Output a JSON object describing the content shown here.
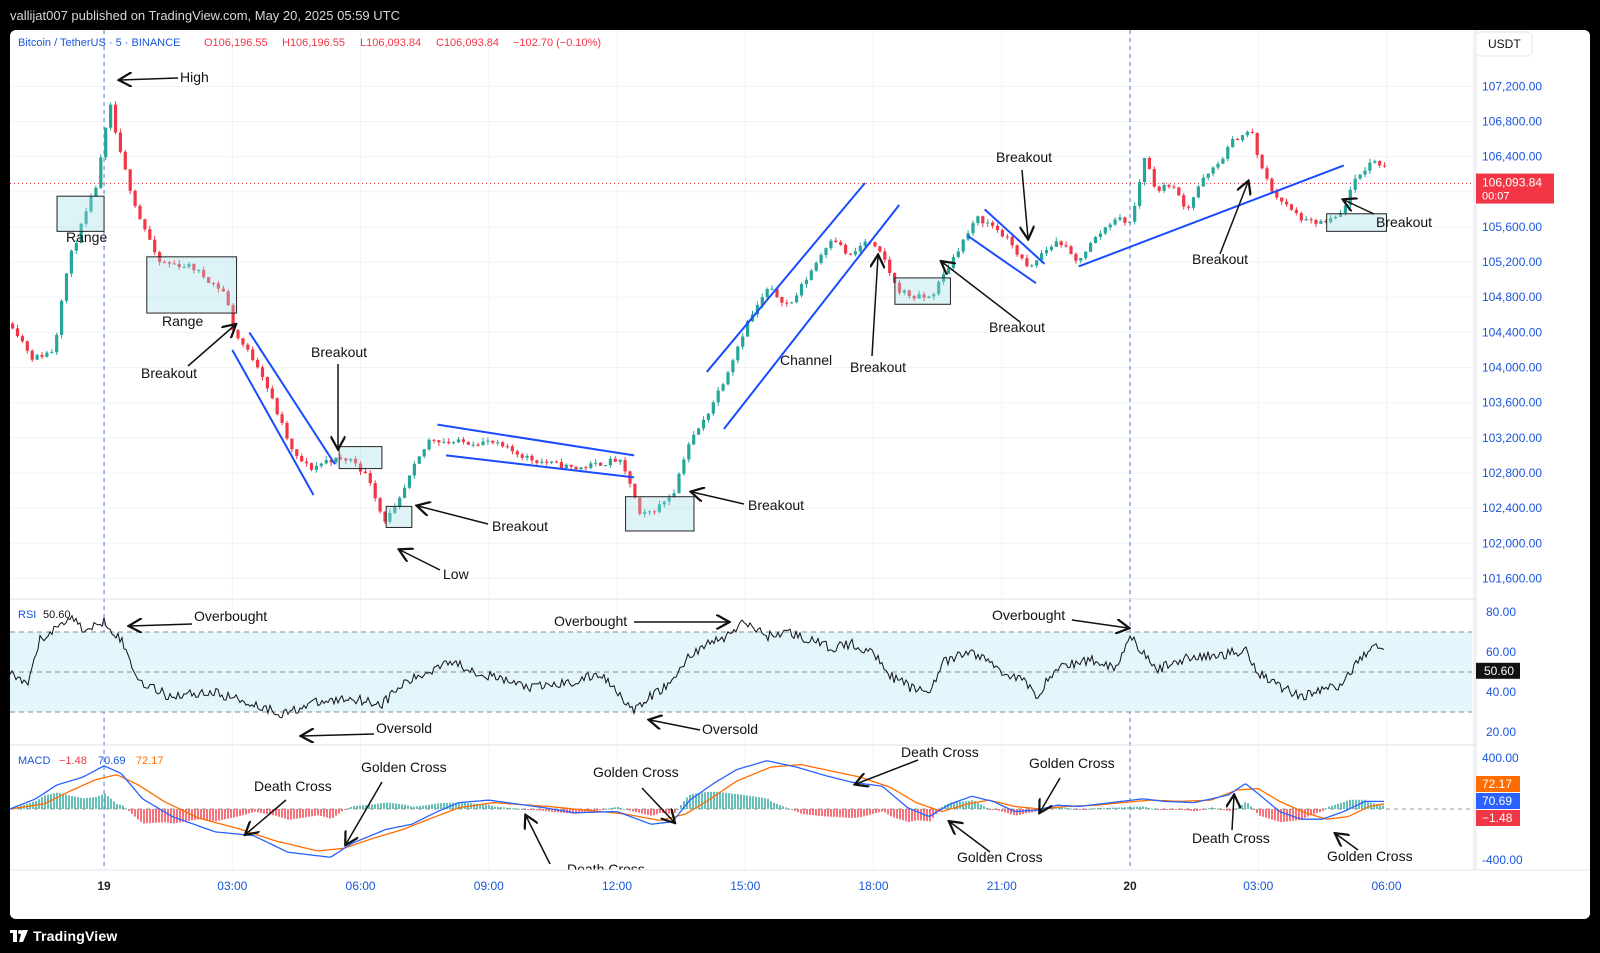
{
  "header": {
    "published": "vallijat007 published on TradingView.com, May 20, 2025 05:59 UTC"
  },
  "footer": {
    "brand": "TradingView"
  },
  "legend": {
    "symbol": "Bitcoin / TetherUS · 5 · BINANCE",
    "open": "O106,196.55",
    "high": "H106,196.55",
    "low": "L106,093.84",
    "close": "C106,093.84",
    "change": "−102.70 (−0.10%)",
    "currency": "USDT"
  },
  "price_label": {
    "value": "106,093.84",
    "countdown": "00:07",
    "color": "#f23645"
  },
  "colors": {
    "up": "#26a69a",
    "down": "#f23645",
    "trend": "#1a4cff",
    "rsi_band": "#e3f6fb",
    "macd": "#2962ff",
    "signal": "#ff6d00"
  },
  "chart_data": [
    {
      "type": "candlestick",
      "symbol": "Bitcoin / TetherUS",
      "interval": "5",
      "ylim": [
        101400,
        107500
      ],
      "y_ticks": [
        "107,200.00",
        "106,800.00",
        "106,400.00",
        "106,000.00",
        "105,600.00",
        "105,200.00",
        "104,800.00",
        "104,400.00",
        "104,000.00",
        "103,600.00",
        "103,200.00",
        "102,800.00",
        "102,400.00",
        "102,000.00",
        "101,600.00"
      ],
      "x_ticks": [
        "19",
        "03:00",
        "06:00",
        "09:00",
        "12:00",
        "15:00",
        "18:00",
        "21:00",
        "20",
        "03:00",
        "06:00"
      ],
      "x_tick_hours": [
        0,
        3,
        6,
        9,
        12,
        15,
        18,
        21,
        24,
        27,
        30
      ],
      "x_range_hours": [
        -2.2,
        32.0
      ],
      "last_price": 106093.84,
      "path": [
        [
          -2.2,
          104500
        ],
        [
          -1.7,
          104100
        ],
        [
          -1.2,
          104200
        ],
        [
          -1.0,
          104900
        ],
        [
          -0.8,
          105300
        ],
        [
          -0.5,
          105700
        ],
        [
          -0.2,
          106100
        ],
        [
          0.0,
          106700
        ],
        [
          0.1,
          107000
        ],
        [
          0.3,
          106500
        ],
        [
          0.6,
          106000
        ],
        [
          0.8,
          105700
        ],
        [
          1.0,
          105500
        ],
        [
          1.2,
          105200
        ],
        [
          2.0,
          105150
        ],
        [
          2.8,
          104850
        ],
        [
          3.0,
          104400
        ],
        [
          3.6,
          104000
        ],
        [
          4.0,
          103500
        ],
        [
          4.4,
          103000
        ],
        [
          4.8,
          102850
        ],
        [
          5.2,
          102950
        ],
        [
          5.8,
          102950
        ],
        [
          6.2,
          102700
        ],
        [
          6.5,
          102250
        ],
        [
          6.8,
          102400
        ],
        [
          7.2,
          102850
        ],
        [
          7.6,
          103200
        ],
        [
          8.0,
          103150
        ],
        [
          9.0,
          103150
        ],
        [
          10.0,
          102950
        ],
        [
          11.0,
          102850
        ],
        [
          12.0,
          102950
        ],
        [
          12.3,
          102650
        ],
        [
          12.5,
          102300
        ],
        [
          12.9,
          102400
        ],
        [
          13.3,
          102600
        ],
        [
          13.6,
          103100
        ],
        [
          14.0,
          103400
        ],
        [
          14.5,
          103900
        ],
        [
          15.0,
          104500
        ],
        [
          15.5,
          104900
        ],
        [
          16.0,
          104700
        ],
        [
          16.5,
          105100
        ],
        [
          17.0,
          105500
        ],
        [
          17.4,
          105250
        ],
        [
          17.8,
          105450
        ],
        [
          18.2,
          105250
        ],
        [
          18.5,
          104900
        ],
        [
          18.9,
          104800
        ],
        [
          19.3,
          104800
        ],
        [
          19.6,
          105050
        ],
        [
          20.0,
          105400
        ],
        [
          20.4,
          105700
        ],
        [
          20.8,
          105600
        ],
        [
          21.2,
          105400
        ],
        [
          21.6,
          105100
        ],
        [
          21.9,
          105300
        ],
        [
          22.3,
          105450
        ],
        [
          22.7,
          105200
        ],
        [
          23.2,
          105500
        ],
        [
          23.6,
          105700
        ],
        [
          24.0,
          105650
        ],
        [
          24.3,
          106400
        ],
        [
          24.6,
          106000
        ],
        [
          24.9,
          106100
        ],
        [
          25.3,
          105800
        ],
        [
          25.6,
          106100
        ],
        [
          26.0,
          106300
        ],
        [
          26.4,
          106600
        ],
        [
          26.8,
          106700
        ],
        [
          27.0,
          106300
        ],
        [
          27.3,
          106000
        ],
        [
          27.7,
          105800
        ],
        [
          28.1,
          105650
        ],
        [
          28.6,
          105650
        ],
        [
          28.9,
          105750
        ],
        [
          29.2,
          106100
        ],
        [
          29.6,
          106350
        ],
        [
          30.0,
          106300
        ],
        [
          30.4,
          106100
        ]
      ]
    },
    {
      "type": "line",
      "name": "RSI",
      "value_label": "50.60",
      "ylim": [
        15,
        85
      ],
      "y_ticks": [
        "80.00",
        "60.00",
        "40.00",
        "20.00"
      ],
      "bands": [
        70,
        50,
        30
      ],
      "path": [
        [
          -2.2,
          50
        ],
        [
          -1.8,
          42
        ],
        [
          -1.5,
          66
        ],
        [
          -1.1,
          72
        ],
        [
          -0.8,
          78
        ],
        [
          -0.4,
          70
        ],
        [
          0.0,
          76
        ],
        [
          0.4,
          66
        ],
        [
          0.8,
          46
        ],
        [
          1.5,
          38
        ],
        [
          2.5,
          40
        ],
        [
          3.2,
          36
        ],
        [
          4.2,
          29
        ],
        [
          4.8,
          34
        ],
        [
          5.8,
          37
        ],
        [
          6.5,
          34
        ],
        [
          7.0,
          44
        ],
        [
          7.6,
          50
        ],
        [
          8.0,
          56
        ],
        [
          9.0,
          48
        ],
        [
          10.0,
          42
        ],
        [
          11.0,
          45
        ],
        [
          11.6,
          49
        ],
        [
          12.0,
          41
        ],
        [
          12.4,
          30
        ],
        [
          12.8,
          38
        ],
        [
          13.3,
          45
        ],
        [
          13.6,
          56
        ],
        [
          14.0,
          63
        ],
        [
          14.5,
          67
        ],
        [
          15.0,
          75
        ],
        [
          15.5,
          68
        ],
        [
          16.0,
          70
        ],
        [
          16.5,
          66
        ],
        [
          17.0,
          62
        ],
        [
          17.5,
          64
        ],
        [
          18.1,
          58
        ],
        [
          18.4,
          48
        ],
        [
          18.9,
          42
        ],
        [
          19.3,
          40
        ],
        [
          19.6,
          54
        ],
        [
          20.2,
          60
        ],
        [
          20.6,
          57
        ],
        [
          21.0,
          50
        ],
        [
          21.5,
          46
        ],
        [
          21.8,
          38
        ],
        [
          22.3,
          52
        ],
        [
          22.8,
          55
        ],
        [
          23.2,
          56
        ],
        [
          23.7,
          52
        ],
        [
          24.0,
          70
        ],
        [
          24.2,
          62
        ],
        [
          24.6,
          51
        ],
        [
          25.3,
          57
        ],
        [
          26.0,
          58
        ],
        [
          26.7,
          61
        ],
        [
          27.0,
          50
        ],
        [
          27.5,
          43
        ],
        [
          28.0,
          38
        ],
        [
          28.5,
          41
        ],
        [
          29.0,
          44
        ],
        [
          29.4,
          58
        ],
        [
          29.8,
          63
        ],
        [
          30.2,
          56
        ],
        [
          30.4,
          50.6
        ]
      ]
    },
    {
      "type": "line",
      "name": "MACD",
      "value_labels": {
        "macd": "−1.48",
        "signal": "70.69",
        "hist": "72.17"
      },
      "axis_labels": [
        "72.17",
        "70.69",
        "−1.48"
      ],
      "ylim": [
        -480,
        480
      ],
      "y_ticks": [
        "400.00",
        "-400.00"
      ],
      "macd_path": [
        [
          -2.2,
          0
        ],
        [
          -1.6,
          80
        ],
        [
          -1.1,
          190
        ],
        [
          -0.5,
          250
        ],
        [
          0.0,
          340
        ],
        [
          0.4,
          280
        ],
        [
          0.9,
          80
        ],
        [
          1.6,
          -60
        ],
        [
          2.6,
          -180
        ],
        [
          3.5,
          -210
        ],
        [
          4.3,
          -340
        ],
        [
          5.3,
          -380
        ],
        [
          5.8,
          -270
        ],
        [
          6.6,
          -160
        ],
        [
          7.2,
          -120
        ],
        [
          7.8,
          -20
        ],
        [
          8.3,
          50
        ],
        [
          9.0,
          70
        ],
        [
          10.3,
          10
        ],
        [
          11.0,
          -30
        ],
        [
          12.0,
          -20
        ],
        [
          12.8,
          -120
        ],
        [
          13.3,
          -100
        ],
        [
          13.7,
          70
        ],
        [
          14.3,
          210
        ],
        [
          14.8,
          310
        ],
        [
          15.5,
          380
        ],
        [
          16.2,
          330
        ],
        [
          16.8,
          270
        ],
        [
          17.5,
          210
        ],
        [
          18.2,
          180
        ],
        [
          18.8,
          10
        ],
        [
          19.3,
          -60
        ],
        [
          19.8,
          40
        ],
        [
          20.3,
          100
        ],
        [
          20.8,
          60
        ],
        [
          21.3,
          -20
        ],
        [
          21.8,
          -10
        ],
        [
          22.3,
          30
        ],
        [
          22.8,
          20
        ],
        [
          23.3,
          40
        ],
        [
          23.8,
          60
        ],
        [
          24.3,
          80
        ],
        [
          24.8,
          60
        ],
        [
          25.5,
          50
        ],
        [
          26.3,
          110
        ],
        [
          26.7,
          200
        ],
        [
          27.0,
          120
        ],
        [
          27.5,
          -20
        ],
        [
          28.0,
          -80
        ],
        [
          28.5,
          -80
        ],
        [
          29.0,
          -20
        ],
        [
          29.5,
          60
        ],
        [
          30.0,
          60
        ],
        [
          30.4,
          30
        ]
      ],
      "signal_path": [
        [
          -2.2,
          0
        ],
        [
          -1.4,
          40
        ],
        [
          -0.8,
          140
        ],
        [
          -0.2,
          230
        ],
        [
          0.3,
          270
        ],
        [
          0.8,
          190
        ],
        [
          1.4,
          60
        ],
        [
          2.2,
          -70
        ],
        [
          3.2,
          -160
        ],
        [
          4.0,
          -250
        ],
        [
          5.0,
          -330
        ],
        [
          5.6,
          -310
        ],
        [
          6.3,
          -230
        ],
        [
          7.0,
          -160
        ],
        [
          7.6,
          -80
        ],
        [
          8.3,
          10
        ],
        [
          9.1,
          50
        ],
        [
          10.4,
          20
        ],
        [
          11.3,
          -10
        ],
        [
          12.2,
          -40
        ],
        [
          13.0,
          -90
        ],
        [
          13.6,
          -40
        ],
        [
          14.1,
          60
        ],
        [
          14.8,
          220
        ],
        [
          15.6,
          330
        ],
        [
          16.3,
          350
        ],
        [
          17.0,
          300
        ],
        [
          17.7,
          250
        ],
        [
          18.4,
          170
        ],
        [
          19.0,
          50
        ],
        [
          19.6,
          -20
        ],
        [
          20.2,
          40
        ],
        [
          20.7,
          70
        ],
        [
          21.3,
          20
        ],
        [
          21.9,
          0
        ],
        [
          22.5,
          20
        ],
        [
          23.2,
          30
        ],
        [
          23.8,
          50
        ],
        [
          24.5,
          70
        ],
        [
          25.2,
          60
        ],
        [
          25.9,
          70
        ],
        [
          26.5,
          150
        ],
        [
          27.0,
          160
        ],
        [
          27.5,
          60
        ],
        [
          28.1,
          -30
        ],
        [
          28.6,
          -80
        ],
        [
          29.1,
          -60
        ],
        [
          29.6,
          20
        ],
        [
          30.1,
          50
        ],
        [
          30.4,
          40
        ]
      ]
    }
  ],
  "annotations": {
    "high": "High",
    "low": "Low",
    "range": "Range",
    "breakout": "Breakout",
    "channel": "Channel",
    "overbought": "Overbought",
    "oversold": "Oversold",
    "golden_cross": "Golden Cross",
    "death_cross": "Death Cross"
  }
}
